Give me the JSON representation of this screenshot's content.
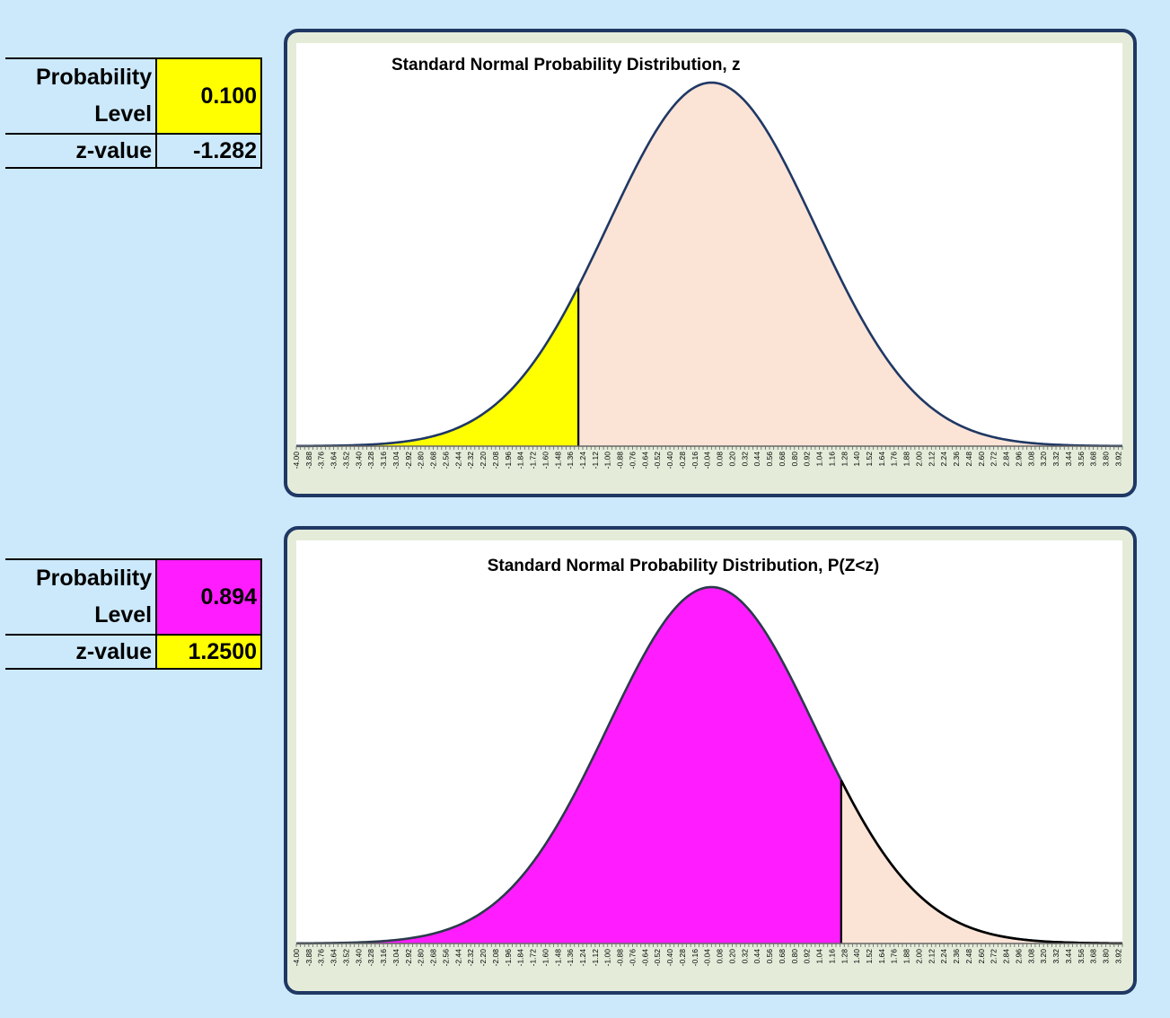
{
  "panel_top": {
    "probability_label": "Probability Level",
    "probability_line1": "Probability",
    "probability_line2": "Level",
    "probability_value": "0.100",
    "zvalue_label": "z-value",
    "zvalue_value": "-1.282",
    "colors": {
      "probability_cell": "#ffff00",
      "zvalue_cell": "#cce9fb"
    }
  },
  "panel_bottom": {
    "probability_label": "Probability Level",
    "probability_line1": "Probability",
    "probability_line2": "Level",
    "probability_value": "0.894",
    "zvalue_label": "z-value",
    "zvalue_value": "1.2500",
    "colors": {
      "probability_cell": "#ff1dff",
      "zvalue_cell": "#ffff00"
    }
  },
  "chart_data": [
    {
      "type": "area",
      "title": "Standard Normal Probability Distribution, z",
      "xlabel": "",
      "ylabel": "",
      "x_range": [
        -4.0,
        3.96
      ],
      "x_step": 0.04,
      "tick_step": 0.12,
      "distribution": "standard normal density",
      "shaded_region": {
        "from": -4.0,
        "to": -1.282,
        "color": "#ffff00"
      },
      "unshaded_color": "#fbe3d6",
      "curve_color": "#1f3864",
      "grid": false,
      "legend": "none"
    },
    {
      "type": "area",
      "title": "Standard Normal Probability Distribution, P(Z<z)",
      "xlabel": "",
      "ylabel": "",
      "x_range": [
        -4.0,
        3.96
      ],
      "x_step": 0.04,
      "tick_step": 0.12,
      "distribution": "standard normal density",
      "shaded_region": {
        "from": -4.0,
        "to": 1.25,
        "color": "#ff1dff"
      },
      "unshaded_color": "#fbe3d6",
      "curve_color": "#1f3864",
      "grid": false,
      "legend": "none"
    }
  ]
}
